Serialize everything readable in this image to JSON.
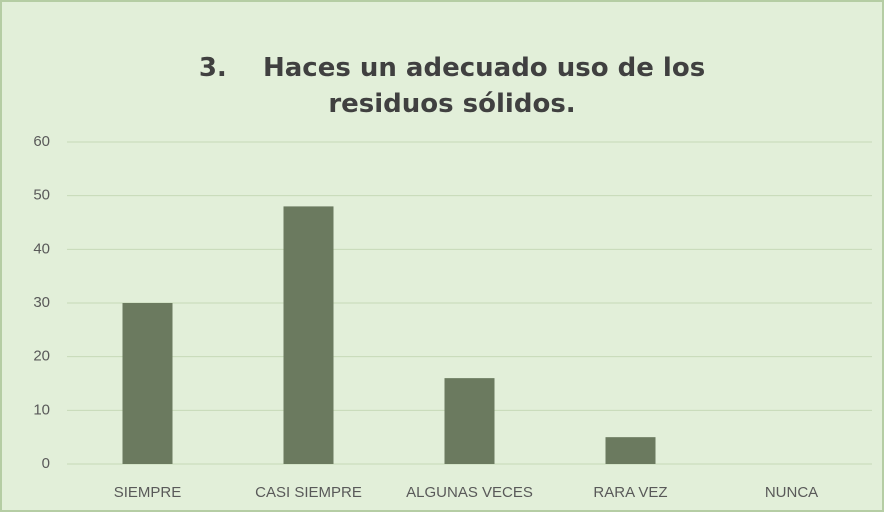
{
  "chart_data": {
    "type": "bar",
    "title": "3.    Haces un adecuado uso de los residuos sólidos.",
    "categories": [
      "SIEMPRE",
      "CASI SIEMPRE",
      "ALGUNAS VECES",
      "RARA VEZ",
      "NUNCA"
    ],
    "values": [
      30,
      48,
      16,
      5,
      0
    ],
    "color": "#6b7a5f",
    "ylim": [
      0,
      60
    ],
    "yticks": [
      0,
      10,
      20,
      30,
      40,
      50,
      60
    ],
    "grid": true
  }
}
